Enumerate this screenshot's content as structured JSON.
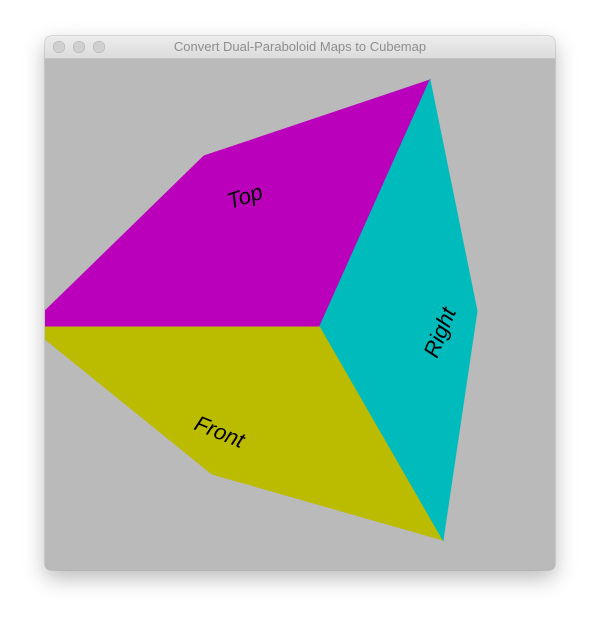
{
  "window": {
    "title": "Convert Dual-Paraboloid Maps to Cubemap",
    "controls": {
      "close": "close-button",
      "minimize": "minimize-button",
      "zoom": "zoom-button"
    }
  },
  "scene": {
    "background_color": "#bababa",
    "faces": [
      {
        "id": "top",
        "label": "Top",
        "color": "#bb00bb"
      },
      {
        "id": "front",
        "label": "Front",
        "color": "#bbbb00"
      },
      {
        "id": "right",
        "label": "Right",
        "color": "#00bbbb"
      }
    ]
  }
}
